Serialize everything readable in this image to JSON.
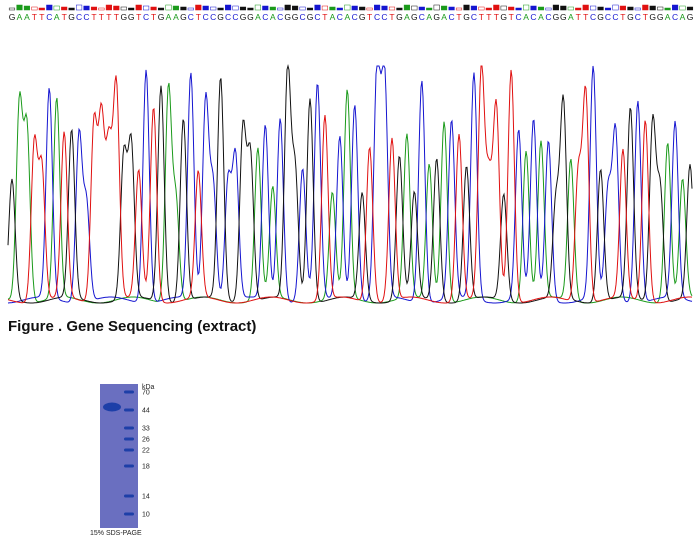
{
  "sequence": {
    "text": "GAATTCATGCCTTTTGGTCTGAAGCTCCGCCGGACACGGCGCTACACGTCCTGAGCAGACTGCTTTGTCACACGGATTCGCCTGCTGGACAG",
    "colors": {
      "A": "#1a9a1a",
      "C": "#1515d0",
      "G": "#111111",
      "T": "#e01010"
    }
  },
  "caption": {
    "text": "Figure . Gene Sequencing (extract)"
  },
  "gel": {
    "unit_label": "kDa",
    "markers": [
      "70",
      "44",
      "33",
      "26",
      "22",
      "18",
      "14",
      "10"
    ],
    "caption": "15% SDS-PAGE",
    "lane_color": "#6a6fc0",
    "band_color": "#1d3fa8"
  }
}
